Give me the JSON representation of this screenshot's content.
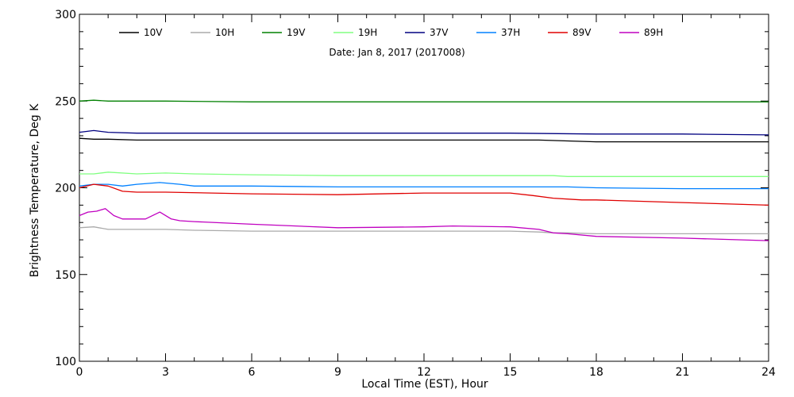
{
  "chart_data": {
    "type": "line",
    "subtitle": "Date: Jan  8, 2017 (2017008)",
    "xlabel": "Local Time (EST), Hour",
    "ylabel": "Brightness Temperature, Deg K",
    "xlim": [
      0,
      24
    ],
    "ylim": [
      100,
      300
    ],
    "xticks": [
      "0",
      "3",
      "6",
      "9",
      "12",
      "15",
      "18",
      "21",
      "24"
    ],
    "yticks": [
      "100",
      "150",
      "200",
      "250",
      "300"
    ],
    "grid": false,
    "legend_position": "top",
    "series": [
      {
        "name": "10V",
        "color": "#000000",
        "x": [
          0,
          0.5,
          1,
          2,
          3,
          4,
          6,
          9,
          12,
          15,
          16,
          17,
          18,
          21,
          24
        ],
        "y": [
          228.5,
          228,
          228,
          227.5,
          227.5,
          227.5,
          227.5,
          227.5,
          227.5,
          227.5,
          227.5,
          227,
          226.5,
          226.5,
          226.5
        ]
      },
      {
        "name": "10H",
        "color": "#aaaaaa",
        "x": [
          0,
          0.5,
          1,
          2,
          3,
          4,
          6,
          9,
          12,
          15,
          16,
          16.5,
          17,
          18,
          21,
          24
        ],
        "y": [
          177,
          177.5,
          176,
          176,
          176,
          175.5,
          175,
          175,
          175,
          175,
          174.5,
          174,
          174,
          173.5,
          173.5,
          173.5
        ]
      },
      {
        "name": "19V",
        "color": "#008000",
        "x": [
          0,
          0.5,
          1,
          3,
          6,
          9,
          12,
          15,
          18,
          21,
          24
        ],
        "y": [
          250,
          250.5,
          250,
          250,
          249.5,
          249.5,
          249.5,
          249.5,
          249.5,
          249.5,
          249.5
        ]
      },
      {
        "name": "19H",
        "color": "#80ff80",
        "x": [
          0,
          0.5,
          1,
          2,
          3,
          4,
          6,
          9,
          12,
          15,
          16.5,
          17,
          18,
          21,
          24
        ],
        "y": [
          208,
          208,
          209,
          208,
          208.5,
          208,
          207.5,
          207,
          207,
          207,
          207,
          206.5,
          206.5,
          206.5,
          206.5
        ]
      },
      {
        "name": "37V",
        "color": "#000080",
        "x": [
          0,
          0.5,
          1,
          2,
          3,
          6,
          9,
          12,
          15,
          18,
          21,
          24
        ],
        "y": [
          232,
          233,
          232,
          231.5,
          231.5,
          231.5,
          231.5,
          231.5,
          231.5,
          231,
          231,
          230.5
        ]
      },
      {
        "name": "37H",
        "color": "#0080ff",
        "x": [
          0,
          0.5,
          1,
          1.5,
          2,
          2.8,
          3.5,
          4,
          6,
          9,
          12,
          15,
          17,
          18,
          21,
          24
        ],
        "y": [
          201,
          202,
          202,
          201,
          202,
          203,
          202,
          201,
          201,
          200.5,
          200.5,
          200.5,
          200.5,
          200,
          199.5,
          199.5
        ]
      },
      {
        "name": "89V",
        "color": "#e00000",
        "x": [
          0,
          0.5,
          1,
          1.5,
          2,
          3,
          6,
          9,
          12,
          15,
          15.8,
          16.5,
          17.5,
          18,
          21,
          24
        ],
        "y": [
          200,
          202,
          201,
          198,
          197.5,
          197.5,
          196.5,
          196,
          197,
          197,
          195.5,
          194,
          193,
          193,
          191.5,
          190
        ]
      },
      {
        "name": "89H",
        "color": "#c000c0",
        "x": [
          0,
          0.3,
          0.6,
          0.9,
          1.2,
          1.5,
          2.3,
          2.8,
          3.2,
          3.5,
          4,
          6,
          9,
          12,
          13,
          15,
          16,
          16.5,
          17,
          18,
          21,
          24
        ],
        "y": [
          184,
          186,
          186.5,
          188,
          184,
          182,
          182,
          186,
          182,
          181,
          180.5,
          179,
          177,
          177.5,
          178,
          177.5,
          176,
          174,
          173.5,
          172,
          171,
          169.5
        ]
      }
    ]
  }
}
